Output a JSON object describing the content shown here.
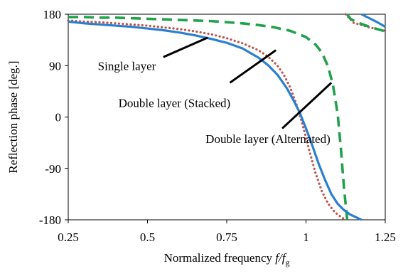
{
  "chart_data": {
    "type": "line",
    "title": "",
    "xlabel": "Normalized frequency",
    "xlabel_italic": "f/f",
    "xlabel_sub": "g",
    "ylabel": "Reflection phase [deg.]",
    "xlim": [
      0.25,
      1.25
    ],
    "ylim": [
      -180,
      180
    ],
    "xticks": [
      0.25,
      0.5,
      0.75,
      1,
      1.25
    ],
    "xtick_labels": [
      "0.25",
      "0.5",
      "0.75",
      "1",
      "1.25"
    ],
    "yticks": [
      180,
      90,
      0,
      -90,
      -180
    ],
    "ytick_labels": [
      "180",
      "90",
      "0",
      "-90",
      "-180"
    ],
    "grid": false,
    "legend": "none",
    "series": [
      {
        "name": "Single layer",
        "style": "solid",
        "color": "#2a7fce",
        "x": [
          0.25,
          0.3,
          0.35,
          0.4,
          0.45,
          0.5,
          0.55,
          0.6,
          0.65,
          0.7,
          0.75,
          0.8,
          0.85,
          0.88,
          0.91,
          0.94,
          0.96,
          0.98,
          1.0,
          1.02,
          1.04,
          1.06,
          1.08,
          1.1,
          1.12,
          1.14,
          1.16,
          1.175,
          1.175,
          1.2,
          1.225,
          1.25
        ],
        "y": [
          167,
          164,
          162,
          160,
          158,
          155,
          152,
          148,
          143,
          137,
          130,
          120,
          104,
          91,
          74,
          50,
          30,
          8,
          -20,
          -50,
          -82,
          -110,
          -135,
          -152,
          -163,
          -171,
          -176,
          -180,
          180,
          173,
          166,
          158
        ]
      },
      {
        "name": "Double layer (Stacked)",
        "style": "dotted",
        "color": "#c0504d",
        "x": [
          0.25,
          0.3,
          0.35,
          0.4,
          0.45,
          0.5,
          0.55,
          0.6,
          0.65,
          0.7,
          0.75,
          0.8,
          0.85,
          0.88,
          0.91,
          0.93,
          0.95,
          0.97,
          0.99,
          1.01,
          1.03,
          1.05,
          1.07,
          1.09,
          1.11,
          1.125,
          1.125,
          1.135,
          1.15,
          1.2,
          1.25
        ],
        "y": [
          169,
          167,
          166,
          164,
          162,
          160,
          157,
          154,
          150,
          145,
          138,
          129,
          117,
          106,
          90,
          74,
          52,
          22,
          -15,
          -58,
          -98,
          -130,
          -152,
          -166,
          -175,
          -180,
          180,
          174,
          165,
          157,
          151
        ]
      },
      {
        "name": "Double layer (Alternated)",
        "style": "dashed",
        "color": "#21a14b",
        "x": [
          0.25,
          0.3,
          0.35,
          0.4,
          0.45,
          0.5,
          0.55,
          0.6,
          0.65,
          0.7,
          0.75,
          0.8,
          0.85,
          0.9,
          0.95,
          1.0,
          1.03,
          1.05,
          1.07,
          1.085,
          1.1,
          1.11,
          1.12,
          1.13,
          1.13,
          1.14,
          1.16,
          1.2,
          1.25
        ],
        "y": [
          175,
          175,
          174,
          174,
          173,
          172,
          171,
          170,
          169,
          168,
          166,
          164,
          161,
          157,
          151,
          140,
          127,
          113,
          88,
          56,
          5,
          -55,
          -125,
          -180,
          180,
          172,
          166,
          158,
          150
        ]
      }
    ],
    "annotations": [
      {
        "label": "Single layer",
        "tip": [
          0.69,
          139
        ],
        "tail": [
          0.55,
          105
        ],
        "text_at": [
          0.435,
          90
        ]
      },
      {
        "label": "Double layer (Stacked)",
        "tip": [
          0.905,
          117
        ],
        "tail": [
          0.76,
          60
        ],
        "text_at": [
          0.585,
          25
        ]
      },
      {
        "label": "Double layer (Alternated)",
        "tip": [
          1.08,
          60
        ],
        "tail": [
          0.925,
          -20
        ],
        "text_at": [
          0.88,
          -38
        ]
      }
    ]
  }
}
